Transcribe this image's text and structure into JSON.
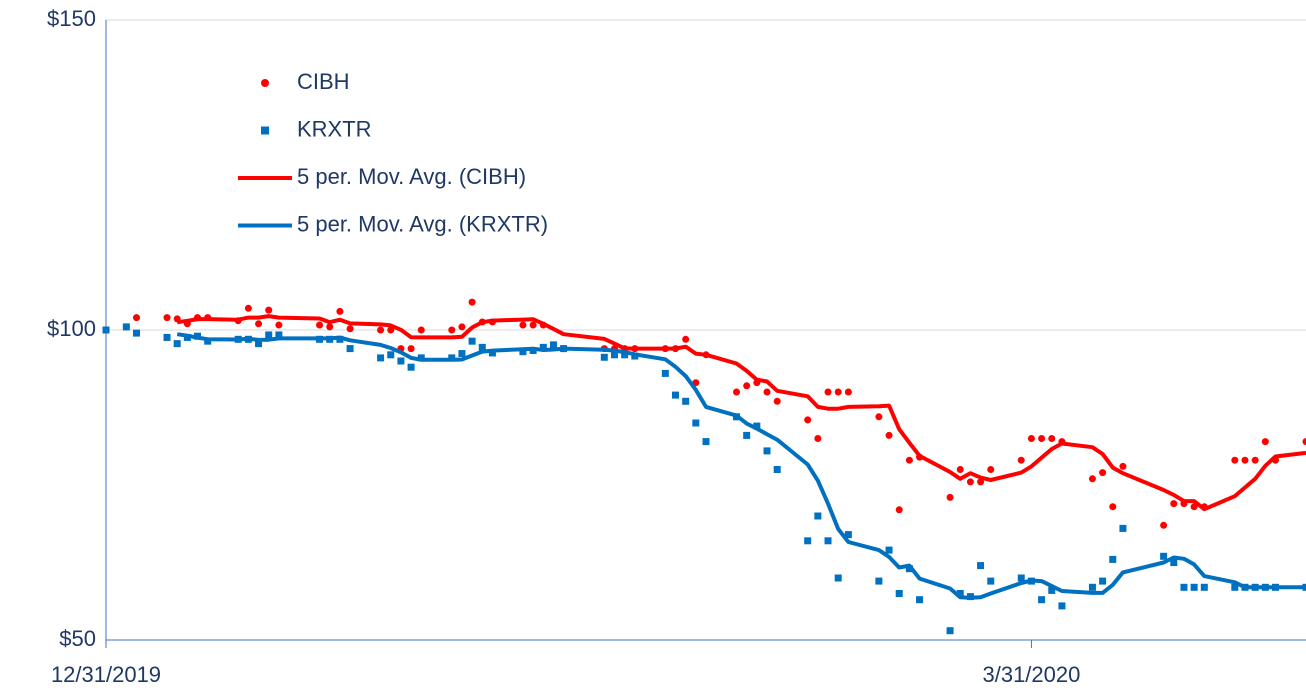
{
  "chart_data": {
    "type": "scatter",
    "x": [
      "2019-12-31",
      "2020-01-02",
      "2020-01-03",
      "2020-01-06",
      "2020-01-07",
      "2020-01-08",
      "2020-01-09",
      "2020-01-10",
      "2020-01-13",
      "2020-01-14",
      "2020-01-15",
      "2020-01-16",
      "2020-01-17",
      "2020-01-21",
      "2020-01-22",
      "2020-01-23",
      "2020-01-24",
      "2020-01-27",
      "2020-01-28",
      "2020-01-29",
      "2020-01-30",
      "2020-01-31",
      "2020-02-03",
      "2020-02-04",
      "2020-02-05",
      "2020-02-06",
      "2020-02-07",
      "2020-02-10",
      "2020-02-11",
      "2020-02-12",
      "2020-02-13",
      "2020-02-14",
      "2020-02-18",
      "2020-02-19",
      "2020-02-20",
      "2020-02-21",
      "2020-02-24",
      "2020-02-25",
      "2020-02-26",
      "2020-02-27",
      "2020-02-28",
      "2020-03-02",
      "2020-03-03",
      "2020-03-04",
      "2020-03-05",
      "2020-03-06",
      "2020-03-09",
      "2020-03-10",
      "2020-03-11",
      "2020-03-12",
      "2020-03-13",
      "2020-03-16",
      "2020-03-17",
      "2020-03-18",
      "2020-03-19",
      "2020-03-20",
      "2020-03-23",
      "2020-03-24",
      "2020-03-25",
      "2020-03-26",
      "2020-03-27",
      "2020-03-30",
      "2020-03-31",
      "2020-04-01",
      "2020-04-02",
      "2020-04-03",
      "2020-04-06",
      "2020-04-07",
      "2020-04-08",
      "2020-04-09",
      "2020-04-13",
      "2020-04-14",
      "2020-04-15",
      "2020-04-16",
      "2020-04-17",
      "2020-04-20",
      "2020-04-21",
      "2020-04-22",
      "2020-04-23",
      "2020-04-24",
      "2020-04-27"
    ],
    "series": [
      {
        "name": "CIBH",
        "color": "#ff0000",
        "marker": "circle",
        "trendline_name": "5 per. Mov. Avg. (CIBH)",
        "values": [
          100,
          100.5,
          102,
          102,
          101.8,
          101,
          102,
          102,
          101.5,
          103.5,
          101,
          103.2,
          100.8,
          100.8,
          100.5,
          103,
          100.2,
          100,
          100,
          97,
          97,
          100,
          100,
          100.5,
          104.5,
          101.3,
          101.3,
          100.8,
          100.8,
          100.8,
          97.2,
          97,
          97,
          97,
          97,
          97,
          97,
          97,
          98.5,
          91.5,
          96,
          90,
          91,
          91.5,
          90,
          88.5,
          85.5,
          82.5,
          90,
          90,
          90,
          86,
          83,
          71,
          79,
          79.5,
          73,
          77.5,
          75.5,
          75.5,
          77.5,
          79,
          82.5,
          82.5,
          82.5,
          82,
          76,
          77,
          71.5,
          78,
          68.5,
          72,
          72,
          71.5,
          71.5,
          79,
          79,
          79,
          82,
          79,
          82
        ]
      },
      {
        "name": "KRXTR",
        "color": "#0070c0",
        "marker": "square",
        "trendline_name": "5 per. Mov. Avg. (KRXTR)",
        "values": [
          100,
          100.5,
          99.5,
          98.8,
          97.8,
          98.8,
          99,
          98.2,
          98.5,
          98.5,
          97.8,
          99.2,
          99.2,
          98.5,
          98.5,
          98.5,
          97,
          95.5,
          96,
          95,
          94,
          95.5,
          95.5,
          96.2,
          98.2,
          97.2,
          96.3,
          96.5,
          96.7,
          97.2,
          97.6,
          97,
          95.6,
          96,
          96,
          95.8,
          93,
          89.5,
          88.5,
          85,
          82,
          86,
          83,
          84.5,
          80.5,
          77.5,
          66,
          70,
          66,
          60,
          67,
          59.5,
          64.5,
          57.5,
          61.5,
          56.5,
          51.5,
          57.5,
          57,
          62,
          59.5,
          60,
          59.5,
          56.5,
          58,
          55.5,
          58.5,
          59.5,
          63,
          68,
          63.5,
          62.5,
          58.5,
          58.5,
          58.5,
          58.5,
          58.5,
          58.5,
          58.5,
          58.5,
          58.5
        ]
      }
    ],
    "trendline": {
      "type": "moving_average",
      "period": 5
    },
    "xlim": [
      "2019-12-31",
      "2020-04-27"
    ],
    "xticks": [
      {
        "value": "2019-12-31",
        "label": "12/31/2019"
      },
      {
        "value": "2020-03-31",
        "label": "3/31/2020"
      }
    ],
    "ylim": [
      50,
      150
    ],
    "yticks": [
      {
        "value": 50,
        "label": "$50"
      },
      {
        "value": 100,
        "label": "$100"
      },
      {
        "value": 150,
        "label": "$150"
      }
    ],
    "grid": true,
    "legend": "top-left"
  }
}
